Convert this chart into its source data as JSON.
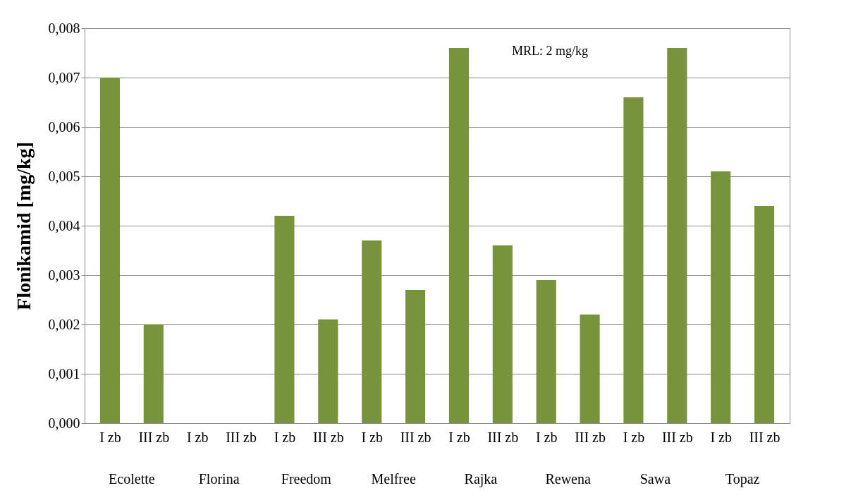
{
  "chart_data": {
    "type": "bar",
    "ylabel": "Flonikamid [mg/kg]",
    "categories": [
      "I zb",
      "III zb",
      "I zb",
      "III zb",
      "I zb",
      "III zb",
      "I zb",
      "III zb",
      "I zb",
      "III zb",
      "I zb",
      "III zb",
      "I zb",
      "III zb",
      "I zb",
      "III zb"
    ],
    "values": [
      0.007,
      0.002,
      null,
      null,
      0.0042,
      0.0021,
      0.0037,
      0.0027,
      0.0076,
      0.0036,
      0.0029,
      0.0022,
      0.0066,
      0.0076,
      0.0051,
      0.0044
    ],
    "color": "#77933c",
    "ylim": [
      0,
      0.008
    ],
    "yticks": [
      {
        "value": 0,
        "label": "0,000"
      },
      {
        "value": 0.001,
        "label": "0,001"
      },
      {
        "value": 0.002,
        "label": "0,002"
      },
      {
        "value": 0.003,
        "label": "0,003"
      },
      {
        "value": 0.004,
        "label": "0,004"
      },
      {
        "value": 0.005,
        "label": "0,005"
      },
      {
        "value": 0.006,
        "label": "0,006"
      },
      {
        "value": 0.007,
        "label": "0,007"
      },
      {
        "value": 0.008,
        "label": "0,008"
      }
    ],
    "grid": "y",
    "annotations": [
      "MRL: 2 mg/kg",
      "Ecolette",
      "Florina",
      "Freedom",
      "Melfree",
      "Rajka",
      "Rewena",
      "Sawa",
      "Topaz"
    ]
  }
}
